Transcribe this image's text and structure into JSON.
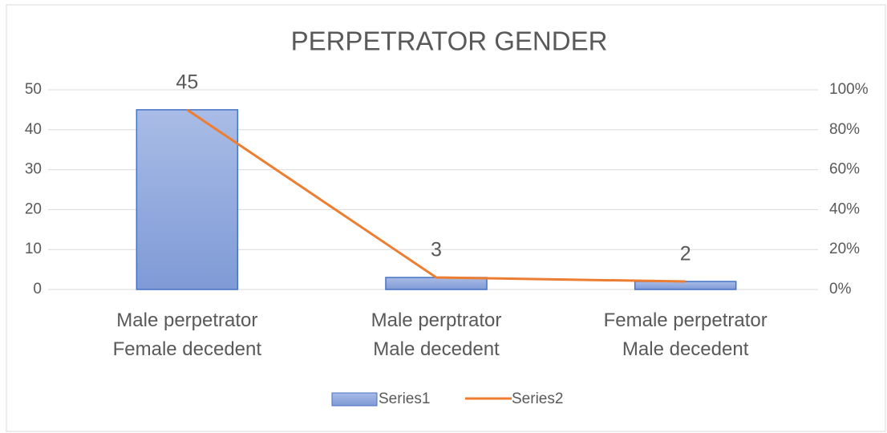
{
  "chart_data": {
    "type": "bar",
    "title": "PERPETRATOR GENDER",
    "categories": [
      "Male perpetrator\nFemale decedent",
      "Male perptrator\nMale decedent",
      "Female perpetrator\nMale decedent"
    ],
    "series": [
      {
        "name": "Series1",
        "color": "#8faadc",
        "values": [
          45,
          3,
          2
        ]
      },
      {
        "name": "Series2",
        "color": "#ed7d31",
        "values": [
          90,
          6,
          4
        ],
        "axis": "y2",
        "type": "line"
      }
    ],
    "ylim": [
      0,
      50
    ],
    "yticks": [
      0,
      10,
      20,
      30,
      40,
      50
    ],
    "y2lim": [
      0,
      100
    ],
    "y2ticks": [
      {
        "value": 0,
        "label": "0%"
      },
      {
        "value": 20,
        "label": "20%"
      },
      {
        "value": 40,
        "label": "40%"
      },
      {
        "value": 60,
        "label": "60%"
      },
      {
        "value": 80,
        "label": "80%"
      },
      {
        "value": 100,
        "label": "100%"
      }
    ],
    "grid": true,
    "legend": "bottom"
  }
}
